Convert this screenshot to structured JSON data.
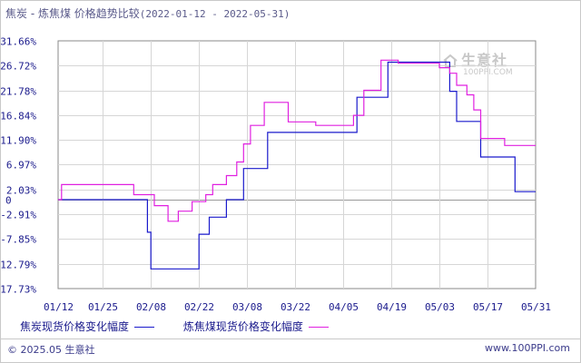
{
  "title": {
    "main": "焦炭 - 炼焦煤 价格趋势比较",
    "range": "(2022-01-12 - 2022-05-31)"
  },
  "watermark": {
    "brand": "生意社",
    "url": "100PPI.COM"
  },
  "footer": {
    "left": "© 2025.05 生意社",
    "right": "www.100PPI.com"
  },
  "colors": {
    "series1": "#1a1acc",
    "series2": "#e020e0",
    "grid": "#d6d6d6",
    "axis": "#8a8a8a",
    "text": "#1a1a8c"
  },
  "chart_data": {
    "type": "line",
    "title": "焦炭 - 炼焦煤 价格趋势比较(2022-01-12 - 2022-05-31)",
    "yticks": [
      "31.66%",
      "26.72%",
      "21.78%",
      "16.84%",
      "11.90%",
      "6.97%",
      "2.03%",
      "0",
      "-2.91%",
      "-7.85%",
      "-12.79%",
      "-17.73%"
    ],
    "ytick_values": [
      31.66,
      26.72,
      21.78,
      16.84,
      11.9,
      6.97,
      2.03,
      0,
      -2.91,
      -7.85,
      -12.79,
      -17.73
    ],
    "xticks": [
      "01/12",
      "01/25",
      "02/08",
      "02/22",
      "03/08",
      "03/22",
      "04/05",
      "04/19",
      "05/03",
      "05/17",
      "05/31"
    ],
    "ylim": [
      -17.73,
      31.66
    ],
    "grid": true,
    "legend_position": "bottom",
    "series": [
      {
        "name": "焦炭现货价格变化幅度",
        "color": "#1a1acc",
        "points": [
          [
            "01/12",
            0
          ],
          [
            "02/07",
            0
          ],
          [
            "02/07",
            -6.5
          ],
          [
            "02/08",
            -6.5
          ],
          [
            "02/08",
            -13.8
          ],
          [
            "02/22",
            -13.8
          ],
          [
            "02/22",
            -6.9
          ],
          [
            "02/25",
            -6.9
          ],
          [
            "02/25",
            -3.5
          ],
          [
            "03/02",
            -3.5
          ],
          [
            "03/02",
            0
          ],
          [
            "03/07",
            0
          ],
          [
            "03/07",
            6.2
          ],
          [
            "03/14",
            6.2
          ],
          [
            "03/14",
            13.4
          ],
          [
            "04/09",
            13.4
          ],
          [
            "04/09",
            20.4
          ],
          [
            "04/18",
            20.4
          ],
          [
            "04/18",
            27.4
          ],
          [
            "05/06",
            27.4
          ],
          [
            "05/06",
            21.6
          ],
          [
            "05/08",
            21.6
          ],
          [
            "05/08",
            15.6
          ],
          [
            "05/15",
            15.6
          ],
          [
            "05/15",
            8.5
          ],
          [
            "05/25",
            8.5
          ],
          [
            "05/25",
            1.6
          ],
          [
            "05/31",
            1.6
          ]
        ]
      },
      {
        "name": "炼焦煤现货价格变化幅度",
        "color": "#e020e0",
        "points": [
          [
            "01/12",
            0
          ],
          [
            "01/13",
            0
          ],
          [
            "01/13",
            3
          ],
          [
            "02/03",
            3
          ],
          [
            "02/03",
            1
          ],
          [
            "02/09",
            1
          ],
          [
            "02/09",
            -1.2
          ],
          [
            "02/13",
            -1.2
          ],
          [
            "02/13",
            -4.3
          ],
          [
            "02/16",
            -4.3
          ],
          [
            "02/16",
            -2.3
          ],
          [
            "02/20",
            -2.3
          ],
          [
            "02/20",
            -0.4
          ],
          [
            "02/24",
            -0.4
          ],
          [
            "02/24",
            1
          ],
          [
            "02/26",
            1
          ],
          [
            "02/26",
            3
          ],
          [
            "03/02",
            3
          ],
          [
            "03/02",
            4.8
          ],
          [
            "03/05",
            4.8
          ],
          [
            "03/05",
            7.5
          ],
          [
            "03/07",
            7.5
          ],
          [
            "03/07",
            11.1
          ],
          [
            "03/09",
            11.1
          ],
          [
            "03/09",
            14.8
          ],
          [
            "03/13",
            14.8
          ],
          [
            "03/13",
            19.4
          ],
          [
            "03/20",
            19.4
          ],
          [
            "03/20",
            15.5
          ],
          [
            "03/28",
            15.5
          ],
          [
            "03/28",
            14.8
          ],
          [
            "04/08",
            14.8
          ],
          [
            "04/08",
            16.8
          ],
          [
            "04/11",
            16.8
          ],
          [
            "04/11",
            21.8
          ],
          [
            "04/16",
            21.8
          ],
          [
            "04/16",
            27.8
          ],
          [
            "04/21",
            27.8
          ],
          [
            "04/21",
            27.2
          ],
          [
            "05/03",
            27.2
          ],
          [
            "05/03",
            26.3
          ],
          [
            "05/06",
            26.3
          ],
          [
            "05/06",
            25.2
          ],
          [
            "05/08",
            25.2
          ],
          [
            "05/08",
            22.8
          ],
          [
            "05/11",
            22.8
          ],
          [
            "05/11",
            20.9
          ],
          [
            "05/13",
            20.9
          ],
          [
            "05/13",
            17.9
          ],
          [
            "05/15",
            17.9
          ],
          [
            "05/15",
            12.2
          ],
          [
            "05/22",
            12.2
          ],
          [
            "05/22",
            10.8
          ],
          [
            "05/31",
            10.8
          ]
        ]
      }
    ]
  }
}
